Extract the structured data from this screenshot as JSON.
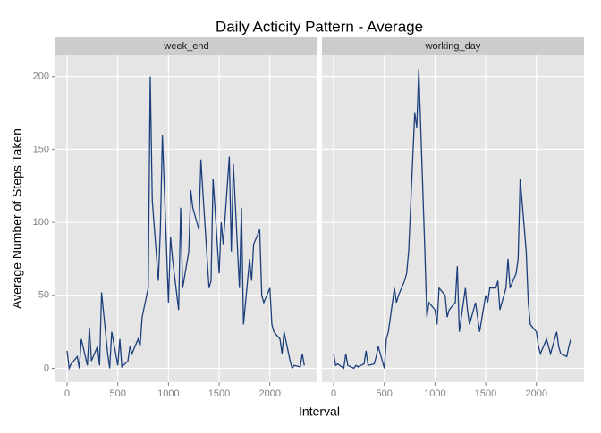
{
  "chart_data": {
    "type": "line",
    "title": "Daily Acticity Pattern - Average",
    "xlabel": "Interval",
    "ylabel": "Average Number of Steps Taken",
    "x": [
      0,
      20,
      40,
      100,
      120,
      140,
      200,
      220,
      240,
      300,
      320,
      340,
      400,
      420,
      440,
      500,
      520,
      540,
      600,
      620,
      640,
      700,
      720,
      740,
      800,
      820,
      840,
      900,
      920,
      940,
      1000,
      1020,
      1040,
      1100,
      1120,
      1140,
      1200,
      1220,
      1240,
      1300,
      1320,
      1340,
      1400,
      1420,
      1440,
      1500,
      1520,
      1540,
      1600,
      1620,
      1640,
      1700,
      1720,
      1740,
      1800,
      1820,
      1840,
      1900,
      1920,
      1940,
      2000,
      2020,
      2040,
      2100,
      2120,
      2140,
      2200,
      2220,
      2240,
      2300,
      2320,
      2340
    ],
    "series": [
      {
        "name": "week_end",
        "color": "#1c3f7c",
        "values": [
          12,
          0,
          3,
          8,
          0,
          20,
          2,
          28,
          5,
          15,
          2,
          52,
          10,
          0,
          25,
          2,
          20,
          1,
          5,
          15,
          10,
          20,
          15,
          35,
          55,
          200,
          115,
          60,
          95,
          160,
          45,
          90,
          75,
          40,
          110,
          55,
          80,
          122,
          110,
          95,
          143,
          120,
          55,
          60,
          130,
          65,
          100,
          85,
          145,
          80,
          140,
          55,
          110,
          30,
          75,
          60,
          85,
          95,
          50,
          45,
          55,
          30,
          25,
          20,
          10,
          25,
          5,
          0,
          2,
          1,
          10,
          2
        ]
      },
      {
        "name": "working_day",
        "color": "#1c3f7c",
        "values": [
          10,
          2,
          3,
          0,
          10,
          2,
          0,
          2,
          1,
          3,
          12,
          2,
          3,
          8,
          15,
          0,
          20,
          25,
          55,
          45,
          50,
          60,
          65,
          80,
          175,
          165,
          205,
          80,
          35,
          45,
          40,
          30,
          55,
          50,
          35,
          40,
          45,
          70,
          25,
          55,
          40,
          30,
          45,
          35,
          25,
          50,
          45,
          55,
          55,
          60,
          40,
          55,
          75,
          55,
          65,
          75,
          130,
          80,
          45,
          30,
          25,
          15,
          10,
          20,
          15,
          10,
          25,
          15,
          10,
          8,
          15,
          20
        ]
      }
    ],
    "xlim": [
      -115,
      2470
    ],
    "ylim": [
      -9.5,
      214.5
    ],
    "xticks": [
      0,
      500,
      1000,
      1500,
      2000
    ],
    "yticks": [
      0,
      50,
      100,
      150,
      200
    ],
    "grid": true
  }
}
